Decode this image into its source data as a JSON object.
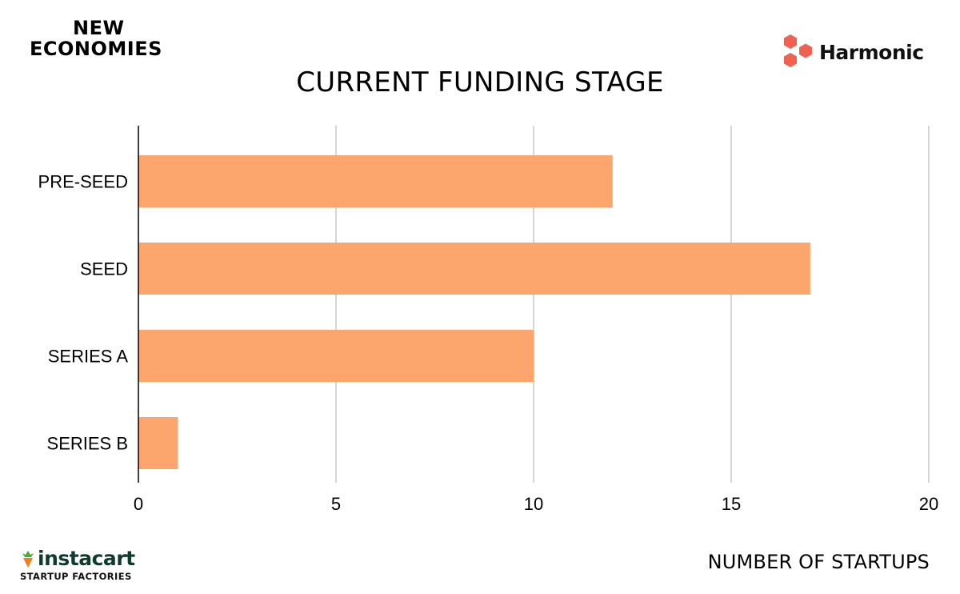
{
  "branding": {
    "left_line1": "NEW",
    "left_line2": "ECONOMIES",
    "right_name": "Harmonic",
    "footer_word": "instacart",
    "footer_sub": "STARTUP FACTORIES"
  },
  "colors": {
    "bar": "#FCA66E",
    "harmonic_logo": "#F0624F",
    "instacart_green": "#43B02A",
    "instacart_orange": "#F57C1F",
    "gridline": "#c8c8c8"
  },
  "chart_data": {
    "type": "bar",
    "orientation": "horizontal",
    "title": "CURRENT FUNDING STAGE",
    "xlabel": "NUMBER OF STARTUPS",
    "ylabel": "",
    "categories": [
      "PRE-SEED",
      "SEED",
      "SERIES A",
      "SERIES B"
    ],
    "values": [
      12,
      17,
      10,
      1
    ],
    "xlim": [
      0,
      20
    ],
    "xticks": [
      0,
      5,
      10,
      15,
      20
    ],
    "grid": "vertical",
    "legend": "none"
  }
}
